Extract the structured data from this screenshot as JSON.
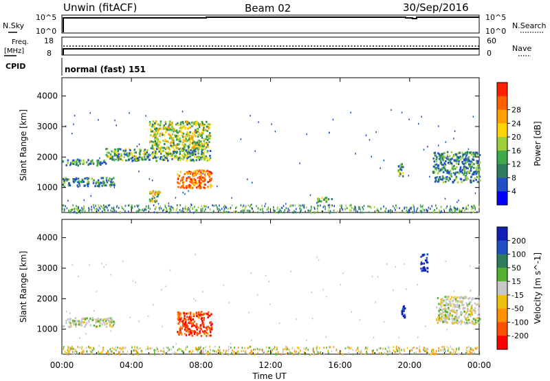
{
  "header": {
    "station": "Unwin (fitACF)",
    "beam": "Beam 02",
    "date": "30/Sep/2016"
  },
  "strip": {
    "nsky_label": "N.Sky",
    "nsky_top": "10^5",
    "nsky_bottom": "10^0",
    "nsearch_label": "N.Search",
    "nsearch_top": "10^5",
    "nsearch_bottom": "10^0",
    "freq_label_1": "Freq.",
    "freq_label_2": "[MHz]",
    "freq_top": "18",
    "freq_bottom": "8",
    "nave_label": "Nave",
    "nave_top": "60",
    "nave_bottom": "0",
    "cpid_label": "CPID",
    "cpid_value": "normal (fast) 151"
  },
  "chart_data": [
    {
      "type": "heatmap",
      "panel": "power",
      "ylabel": "Slant Range [km]",
      "xlabel": "",
      "xlim": [
        "00:00",
        "24:00"
      ],
      "ylim": [
        180,
        4600
      ],
      "yticks": [
        "1000",
        "2000",
        "3000",
        "4000"
      ],
      "xticks": [
        "00:00",
        "04:00",
        "08:00",
        "12:00",
        "16:00",
        "20:00",
        "00:00"
      ],
      "colorbar": {
        "label": "Power [dB]",
        "ticks": [
          "4",
          "8",
          "12",
          "16",
          "20",
          "24",
          "28"
        ],
        "colors": [
          "#0000ff",
          "#2050c8",
          "#2e7d5a",
          "#3fa84a",
          "#9ecf3a",
          "#ffd400",
          "#ffa000",
          "#ff6000",
          "#ff2000"
        ]
      },
      "regions": [
        {
          "t": [
            0.0,
            2.5
          ],
          "r": [
            1750,
            1950
          ],
          "level": "low-mid"
        },
        {
          "t": [
            0.0,
            3.0
          ],
          "r": [
            1050,
            1350
          ],
          "level": "low-mid"
        },
        {
          "t": [
            2.5,
            8.5
          ],
          "r": [
            1900,
            2300
          ],
          "level": "mid"
        },
        {
          "t": [
            5.0,
            8.5
          ],
          "r": [
            2300,
            3200
          ],
          "level": "mid-high"
        },
        {
          "t": [
            6.6,
            8.6
          ],
          "r": [
            1000,
            1600
          ],
          "level": "high"
        },
        {
          "t": [
            5.0,
            5.6
          ],
          "r": [
            550,
            950
          ],
          "level": "mid-high"
        },
        {
          "t": [
            14.5,
            15.6
          ],
          "r": [
            550,
            700
          ],
          "level": "mid"
        },
        {
          "t": [
            19.3,
            19.6
          ],
          "r": [
            1400,
            1900
          ],
          "level": "mid"
        },
        {
          "t": [
            21.3,
            24.0
          ],
          "r": [
            1200,
            2200
          ],
          "level": "low-mid"
        }
      ]
    },
    {
      "type": "heatmap",
      "panel": "velocity",
      "ylabel": "Slant Range [km]",
      "xlabel": "Time UT",
      "xlim": [
        "00:00",
        "24:00"
      ],
      "ylim": [
        180,
        4600
      ],
      "yticks": [
        "1000",
        "2000",
        "3000",
        "4000"
      ],
      "xticks": [
        "00:00",
        "04:00",
        "08:00",
        "12:00",
        "16:00",
        "20:00",
        "00:00"
      ],
      "colorbar": {
        "label": "Velocity [m s^-1]",
        "ticks": [
          "200",
          "100",
          "50",
          "15",
          "-15",
          "-50",
          "-100",
          "-200"
        ],
        "colors": [
          "#1020b0",
          "#2050c8",
          "#2e7d5a",
          "#55b030",
          "#c8c8c8",
          "#f0c010",
          "#ff9000",
          "#ff5000",
          "#ff0000"
        ]
      },
      "regions": [
        {
          "t": [
            0.0,
            3.0
          ],
          "r": [
            1100,
            1400
          ],
          "level": "gray"
        },
        {
          "t": [
            6.6,
            8.6
          ],
          "r": [
            800,
            1600
          ],
          "level": "red"
        },
        {
          "t": [
            19.5,
            19.7
          ],
          "r": [
            1400,
            1800
          ],
          "level": "blue"
        },
        {
          "t": [
            20.6,
            21.0
          ],
          "r": [
            2900,
            3500
          ],
          "level": "blue"
        },
        {
          "t": [
            21.5,
            24.0
          ],
          "r": [
            1200,
            2100
          ],
          "level": "gray"
        }
      ]
    }
  ]
}
